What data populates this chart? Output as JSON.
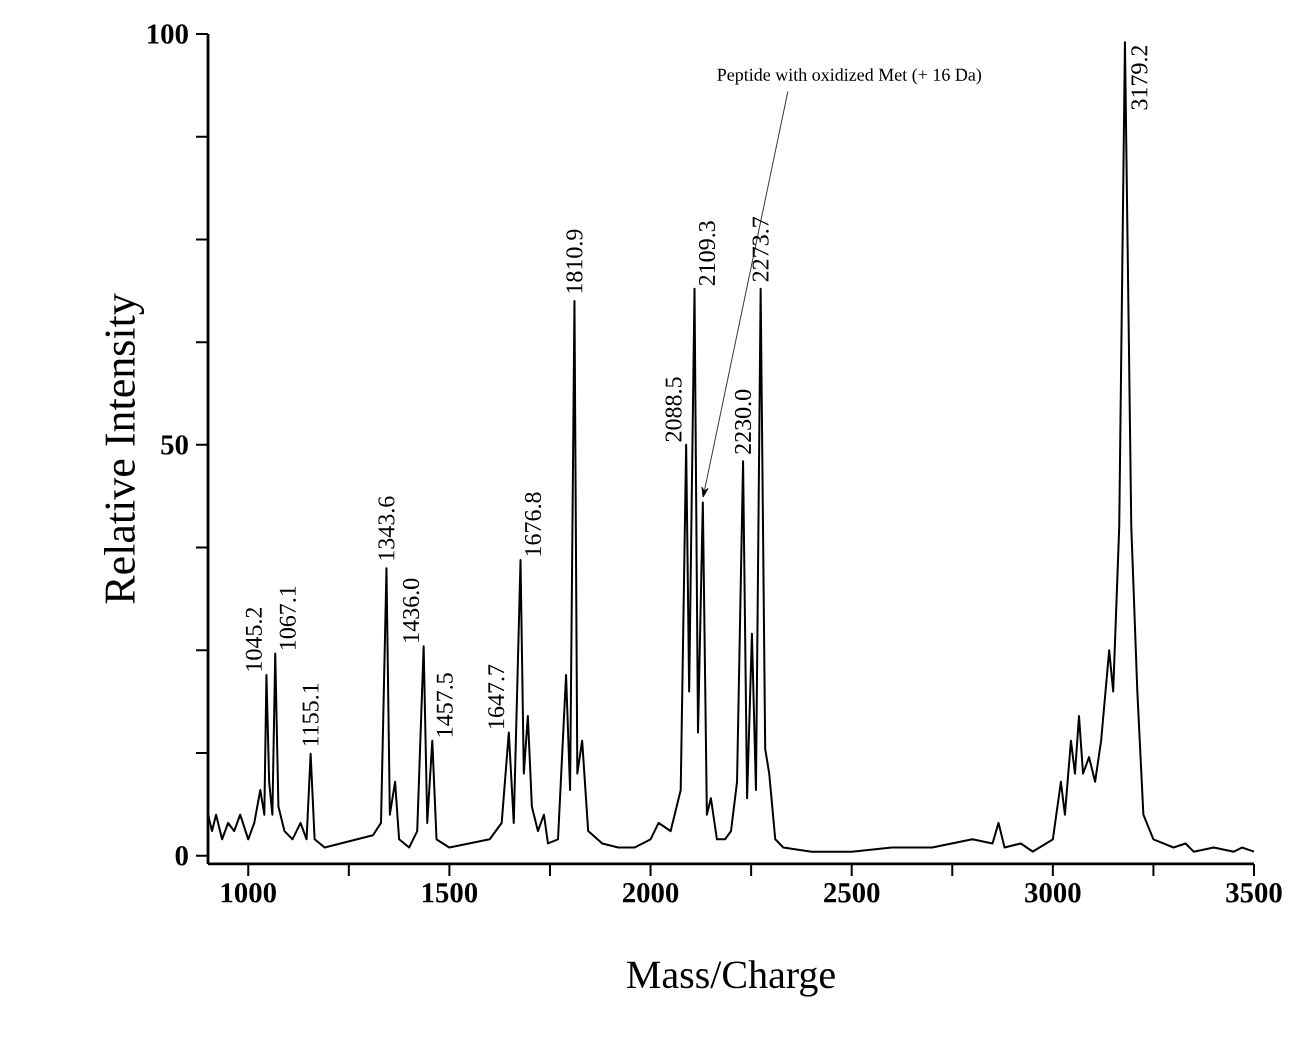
{
  "chart_data": {
    "type": "line",
    "xlabel": "Mass/Charge",
    "ylabel": "Relative Intensity",
    "color": "#000000",
    "xlim": [
      900,
      3500
    ],
    "ylim": [
      -1,
      100
    ],
    "xticks": [
      1000,
      {
        "value": 1250,
        "label": null
      },
      1500,
      {
        "value": 1750,
        "label": null
      },
      2000,
      {
        "value": 2250,
        "label": null
      },
      2500,
      {
        "value": 2750,
        "label": null
      },
      3000,
      {
        "value": 3250,
        "label": null
      },
      3500
    ],
    "yticks": [
      0,
      {
        "value": 12.5,
        "label": null
      },
      {
        "value": 25,
        "label": null
      },
      {
        "value": 37.5,
        "label": null
      },
      50,
      {
        "value": 62.5,
        "label": null
      },
      {
        "value": 75,
        "label": null
      },
      {
        "value": 87.5,
        "label": null
      },
      100
    ],
    "grid": false,
    "marker": "none",
    "line_style": "solid",
    "x": [
      900,
      910,
      920,
      935,
      950,
      965,
      980,
      1000,
      1015,
      1030,
      1040,
      1045.2,
      1052,
      1060,
      1067.1,
      1075,
      1090,
      1110,
      1130,
      1145,
      1155.1,
      1165,
      1190,
      1230,
      1270,
      1310,
      1330,
      1343.6,
      1352,
      1365,
      1375,
      1400,
      1420,
      1436.0,
      1445,
      1457.5,
      1468,
      1500,
      1550,
      1600,
      1630,
      1647.7,
      1660,
      1676.8,
      1685,
      1695,
      1705,
      1720,
      1735,
      1745,
      1770,
      1790,
      1800,
      1810.9,
      1818,
      1830,
      1845,
      1880,
      1920,
      1960,
      2000,
      2020,
      2050,
      2075,
      2088.5,
      2096,
      2109.3,
      2118,
      2130,
      2140,
      2150,
      2165,
      2185,
      2200,
      2215,
      2230.0,
      2240,
      2252,
      2262,
      2273.7,
      2285,
      2295,
      2310,
      2330,
      2400,
      2500,
      2600,
      2700,
      2800,
      2850,
      2865,
      2880,
      2920,
      2950,
      3000,
      3020,
      3030,
      3045,
      3055,
      3065,
      3075,
      3090,
      3105,
      3120,
      3140,
      3150,
      3165,
      3179.2,
      3195,
      3210,
      3225,
      3250,
      3300,
      3330,
      3350,
      3400,
      3450,
      3470,
      3500
    ],
    "values": [
      5,
      3,
      5,
      2,
      4,
      3,
      5,
      2,
      4,
      8,
      5,
      22,
      9,
      5,
      24.6,
      6,
      3,
      2,
      4,
      2,
      12.4,
      2,
      1,
      1.5,
      2,
      2.5,
      4,
      35,
      5,
      9,
      2,
      1,
      3,
      25.5,
      4,
      14,
      2,
      1,
      1.5,
      2,
      4,
      15,
      4,
      36,
      10,
      17,
      6,
      3,
      5,
      1.5,
      2,
      22,
      8,
      67.5,
      10,
      14,
      3,
      1.5,
      1,
      1,
      2,
      4,
      3,
      8,
      50,
      20,
      69,
      15,
      43,
      5,
      7,
      2,
      2,
      3,
      9,
      48,
      7,
      27,
      8,
      69,
      13,
      10,
      2,
      1,
      0.5,
      0.5,
      1,
      1,
      2,
      1.5,
      4,
      1,
      1.5,
      0.5,
      2,
      9,
      5,
      14,
      10,
      17,
      10,
      12,
      9,
      14,
      25,
      20,
      40,
      99,
      40,
      20,
      5,
      2,
      1,
      1.5,
      0.5,
      1,
      0.5,
      1,
      0.5
    ],
    "annotations": [
      {
        "text": "1045.2",
        "x": 1045.2,
        "y": 22
      },
      {
        "text": "1067.1",
        "x": 1067.1,
        "y": 24.6
      },
      {
        "text": "1155.1",
        "x": 1155.1,
        "y": 12.4
      },
      {
        "text": "1343.6",
        "x": 1343.6,
        "y": 35
      },
      {
        "text": "1436.0",
        "x": 1436.0,
        "y": 25.5
      },
      {
        "text": "1457.5",
        "x": 1457.5,
        "y": 14
      },
      {
        "text": "1647.7",
        "x": 1647.7,
        "y": 15
      },
      {
        "text": "1676.8",
        "x": 1676.8,
        "y": 36
      },
      {
        "text": "1810.9",
        "x": 1810.9,
        "y": 67.5
      },
      {
        "text": "2088.5",
        "x": 2088.5,
        "y": 50
      },
      {
        "text": "2109.3",
        "x": 2109.3,
        "y": 69
      },
      {
        "text": "2230.0",
        "x": 2230.0,
        "y": 48
      },
      {
        "text": "2273.7",
        "x": 2273.7,
        "y": 69
      },
      {
        "text": "3179.2",
        "x": 3179.2,
        "y": 99
      },
      {
        "text": "Peptide with oxidized Met (+ 16 Da)",
        "x": 2130,
        "y": 43
      }
    ]
  }
}
